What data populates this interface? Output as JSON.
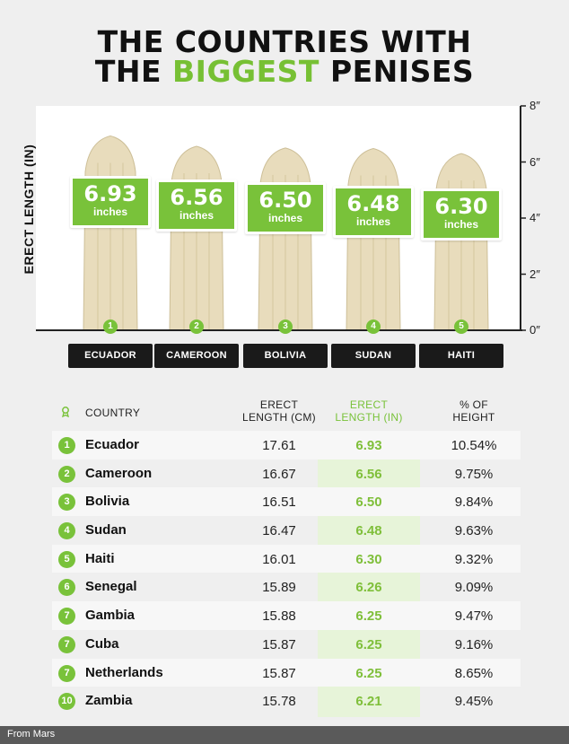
{
  "title_line1": "THE COUNTRIES WITH",
  "title_line2_pre": "THE ",
  "title_line2_accent": "BIGGEST",
  "title_line2_post": " PENISES",
  "colors": {
    "accent": "#79c23a",
    "banana": "#e8dcbc",
    "dark": "#1a1a1a"
  },
  "chart_data": {
    "type": "bar",
    "ylabel": "ERECT LENGTH (IN)",
    "ylim": [
      0,
      8
    ],
    "yticks": [
      "0″",
      "2″",
      "4″",
      "6″",
      "8″"
    ],
    "categories": [
      "ECUADOR",
      "CAMEROON",
      "BOLIVIA",
      "SUDAN",
      "HAITI"
    ],
    "values": [
      6.93,
      6.56,
      6.5,
      6.48,
      6.3
    ],
    "value_labels": [
      "6.93",
      "6.56",
      "6.50",
      "6.48",
      "6.30"
    ],
    "ranks": [
      "1",
      "2",
      "3",
      "4",
      "5"
    ],
    "unit": "inches",
    "grid": false
  },
  "table": {
    "headers": {
      "country": "COUNTRY",
      "cm": [
        "ERECT",
        "LENGTH (CM)"
      ],
      "inch": [
        "ERECT",
        "LENGTH (IN)"
      ],
      "pct": [
        "% OF",
        "HEIGHT"
      ]
    },
    "rows": [
      {
        "rank": "1",
        "country": "Ecuador",
        "cm": "17.61",
        "inch": "6.93",
        "pct": "10.54%"
      },
      {
        "rank": "2",
        "country": "Cameroon",
        "cm": "16.67",
        "inch": "6.56",
        "pct": "9.75%"
      },
      {
        "rank": "3",
        "country": "Bolivia",
        "cm": "16.51",
        "inch": "6.50",
        "pct": "9.84%"
      },
      {
        "rank": "4",
        "country": "Sudan",
        "cm": "16.47",
        "inch": "6.48",
        "pct": "9.63%"
      },
      {
        "rank": "5",
        "country": "Haiti",
        "cm": "16.01",
        "inch": "6.30",
        "pct": "9.32%"
      },
      {
        "rank": "6",
        "country": "Senegal",
        "cm": "15.89",
        "inch": "6.26",
        "pct": "9.09%"
      },
      {
        "rank": "7",
        "country": "Gambia",
        "cm": "15.88",
        "inch": "6.25",
        "pct": "9.47%"
      },
      {
        "rank": "7",
        "country": "Cuba",
        "cm": "15.87",
        "inch": "6.25",
        "pct": "9.16%"
      },
      {
        "rank": "7",
        "country": "Netherlands",
        "cm": "15.87",
        "inch": "6.25",
        "pct": "8.65%"
      },
      {
        "rank": "10",
        "country": "Zambia",
        "cm": "15.78",
        "inch": "6.21",
        "pct": "9.45%"
      }
    ]
  },
  "credit": "From Mars"
}
